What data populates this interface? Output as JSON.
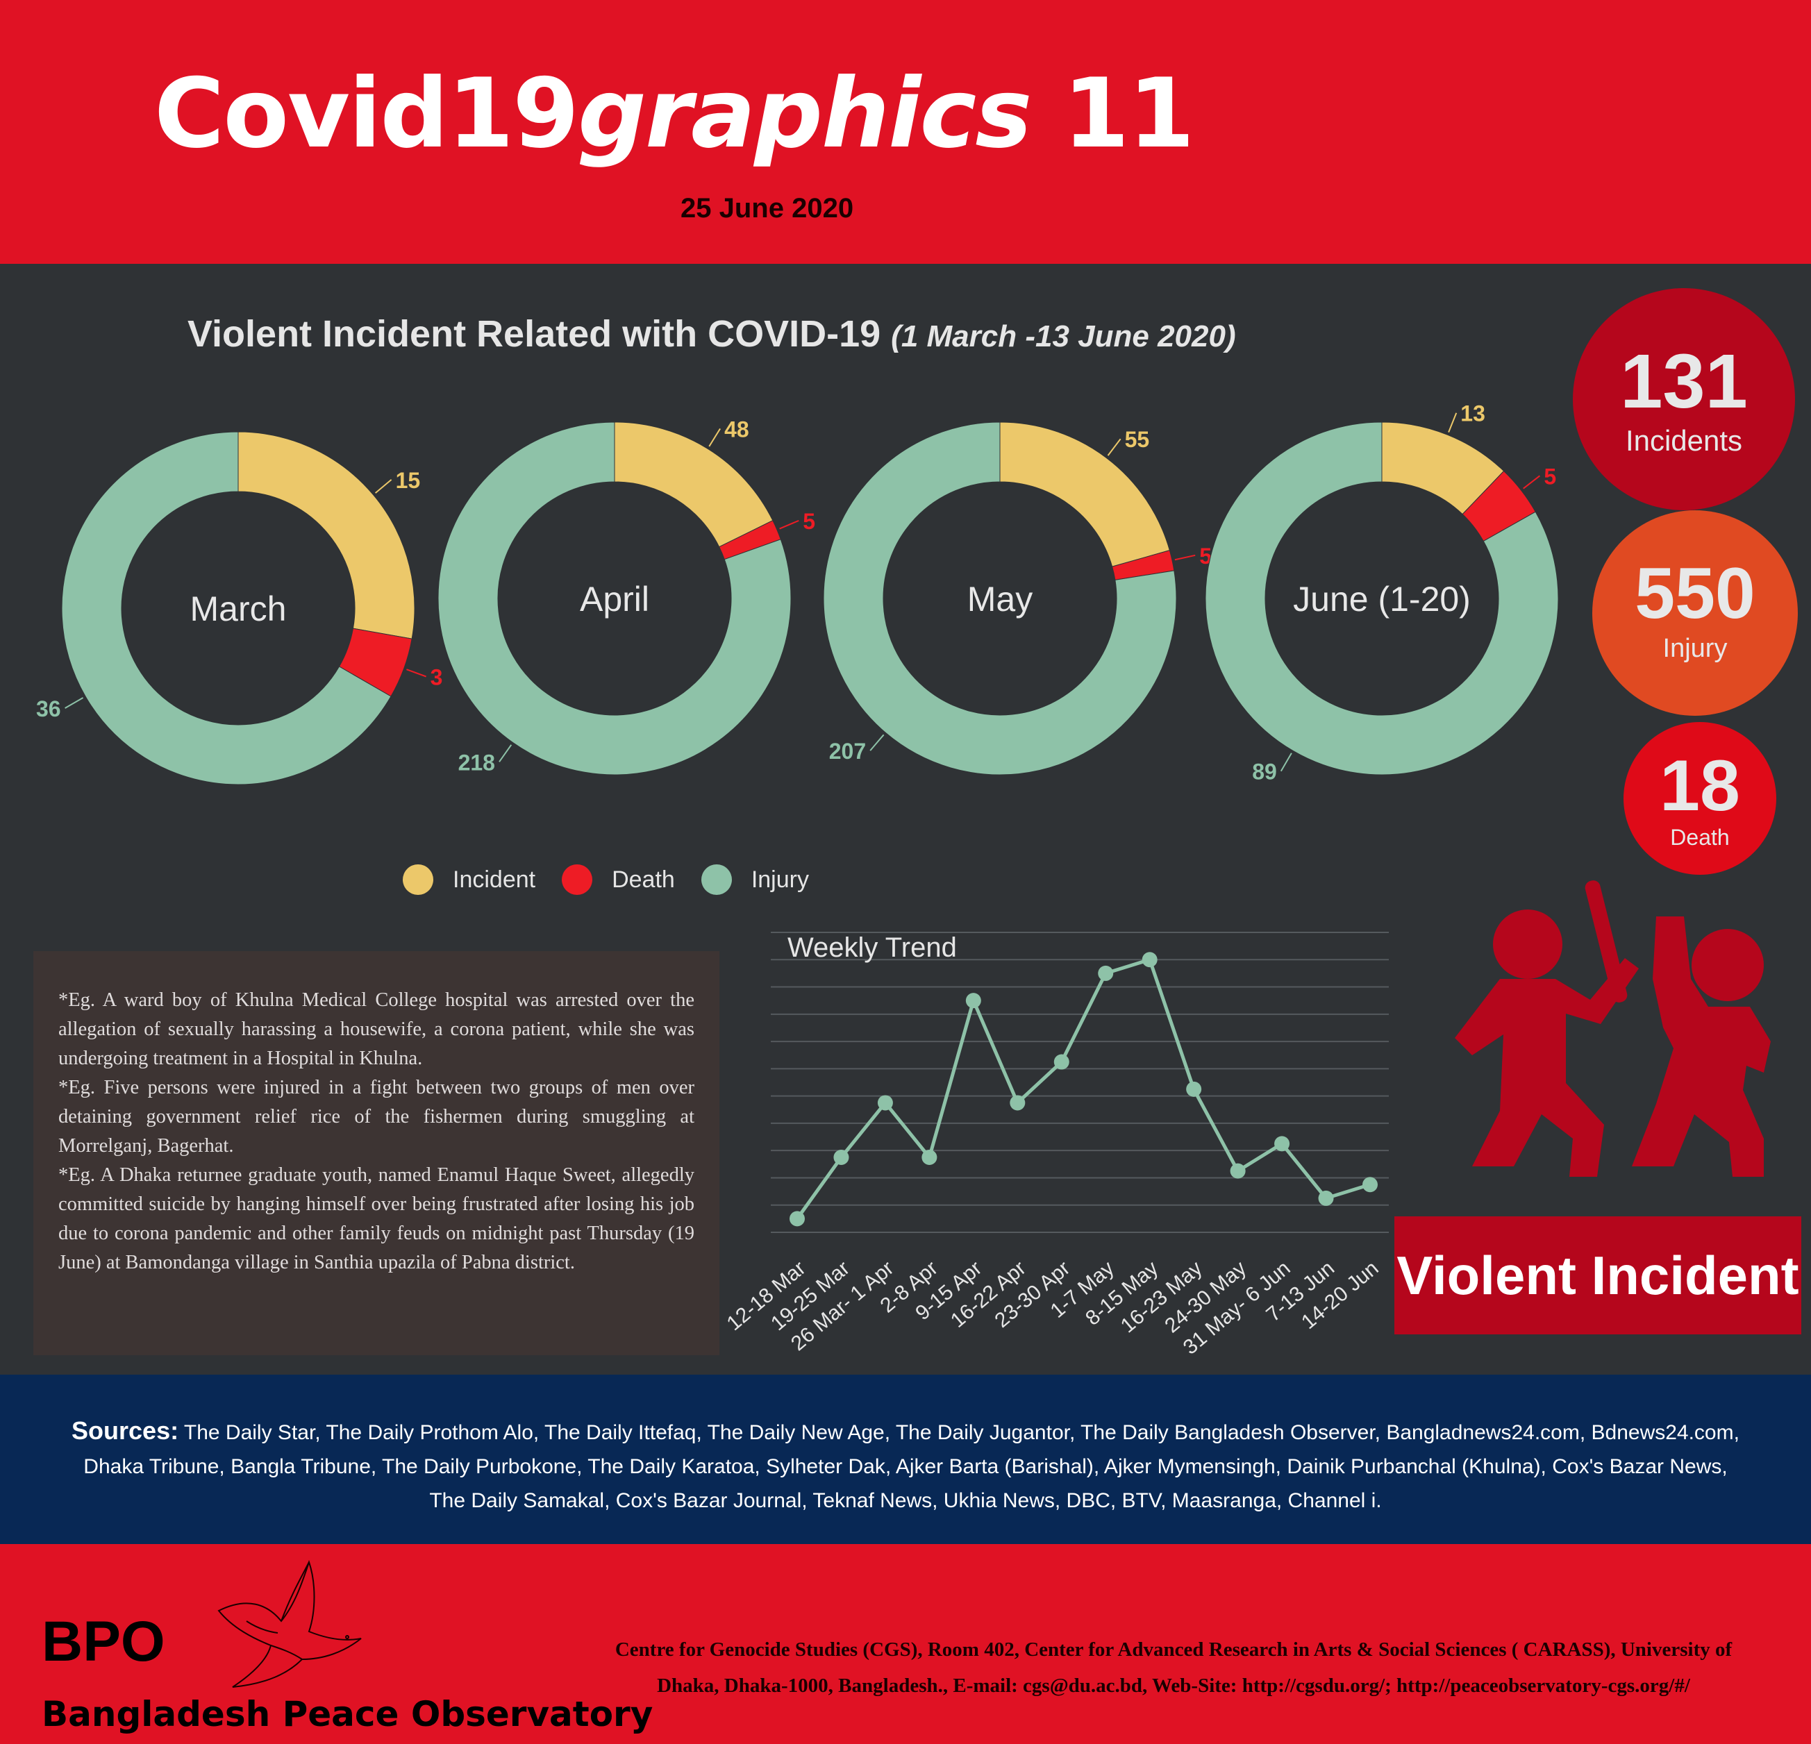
{
  "header": {
    "title_main": "Covid19",
    "title_italic": "graphics",
    "title_number": "11",
    "date": "25 June 2020"
  },
  "section": {
    "title": "Violent Incident Related with COVID-19",
    "subtitle": "(1 March -13 June 2020)"
  },
  "kpis": [
    {
      "value": "131",
      "label": "Incidents",
      "color": "#b5061c"
    },
    {
      "value": "550",
      "label": "Injury",
      "color": "#e04a22"
    },
    {
      "value": "18",
      "label": "Death",
      "color": "#df0a18"
    }
  ],
  "colors": {
    "incident": "#ecc86a",
    "death": "#ee1c25",
    "injury": "#8ec2a8",
    "line": "#8ec2a8"
  },
  "chart_data": [
    {
      "type": "pie",
      "title": "",
      "donuts": [
        {
          "label": "March",
          "incident": 15,
          "death": 3,
          "injury": 36
        },
        {
          "label": "April",
          "incident": 48,
          "death": 5,
          "injury": 218
        },
        {
          "label": "May",
          "incident": 55,
          "death": 5,
          "injury": 207
        },
        {
          "label": "June (1-20)",
          "incident": 13,
          "death": 5,
          "injury": 89
        }
      ],
      "legend": [
        {
          "name": "Incident",
          "color": "#ecc86a"
        },
        {
          "name": "Death",
          "color": "#ee1c25"
        },
        {
          "name": "Injury",
          "color": "#8ec2a8"
        }
      ],
      "legend_position": "bottom"
    },
    {
      "type": "line",
      "title": "Weekly Trend",
      "categories": [
        "12-18 Mar",
        "19-25 Mar",
        "26 Mar- 1 Apr",
        "2-8 Apr",
        "9-15 Apr",
        "16-22 Apr",
        "23-30 Apr",
        "1-7 May",
        "8-15 May",
        "16-23 May",
        "24-30 May",
        "31 May- 6 Jun",
        "7-13 Jun",
        "14-20 Jun"
      ],
      "values": [
        1,
        5.5,
        9.5,
        5.5,
        17,
        9.5,
        12.5,
        19,
        20,
        10.5,
        4.5,
        6.5,
        2.5,
        3.5
      ],
      "ylim": [
        0,
        22
      ],
      "grid": true
    }
  ],
  "examples": [
    "*Eg. A ward boy of Khulna Medical College hospital was arrested over the allegation of sexually harassing a housewife, a corona patient, while she was undergoing treatment in a Hospital in Khulna.",
    "*Eg. Five persons were injured in a fight between two groups of men over detaining government relief rice of the fishermen during smuggling at Morrelganj, Bagerhat.",
    "*Eg. A Dhaka returnee graduate youth, named Enamul Haque Sweet, allegedly committed suicide by hanging himself over being frustrated after losing his job due to corona pandemic and other family feuds on midnight past Thursday (19 June) at Bamondanga village in Santhia upazila of Pabna district."
  ],
  "violent_label": "Violent Incident",
  "sources": {
    "label": "Sources:",
    "line1": "The Daily Star, The Daily Prothom Alo, The Daily Ittefaq, The Daily New Age, The Daily Jugantor, The Daily Bangladesh Observer, Bangladnews24.com, Bdnews24.com,",
    "line2": "Dhaka Tribune, Bangla Tribune,  The Daily Purbokone, The Daily Karatoa, Sylheter Dak, Ajker Barta (Barishal), Ajker Mymensingh, Dainik Purbanchal (Khulna), Cox's Bazar News,",
    "line3": "The Daily Samakal, Cox's Bazar Journal, Teknaf News, Ukhia News, DBC, BTV, Maasranga, Channel i."
  },
  "footer": {
    "short": "BPO",
    "name": "Bangladesh Peace Observatory",
    "address_line1": "Centre for Genocide Studies (CGS), Room 402, Center for Advanced Research in Arts & Social Sciences ( CARASS), University of",
    "address_line2": "Dhaka, Dhaka-1000, Bangladesh., E-mail: cgs@du.ac.bd, Web-Site: http://cgsdu.org/; http://peaceobservatory-cgs.org/#/"
  }
}
